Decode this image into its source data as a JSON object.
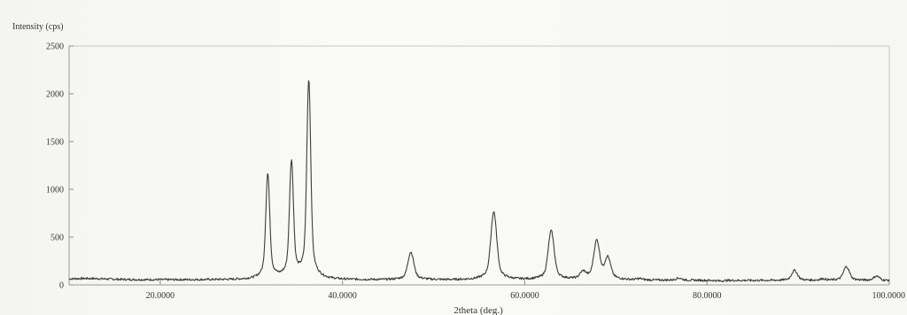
{
  "chart_data": {
    "type": "line",
    "title": "",
    "xlabel": "2theta (deg.)",
    "ylabel": "Intensity (cps)",
    "xlim": [
      10,
      100
    ],
    "ylim": [
      0,
      2500
    ],
    "x_ticks": [
      20,
      40,
      60,
      80,
      100
    ],
    "x_tick_labels": [
      "20.0000",
      "40.0000",
      "60.0000",
      "80.0000",
      "100.0000"
    ],
    "y_ticks": [
      0,
      500,
      1000,
      1500,
      2000,
      2500
    ],
    "y_tick_labels": [
      "0",
      "500",
      "1000",
      "1500",
      "2000",
      "2500"
    ],
    "grid": false,
    "series": [
      {
        "color": "#3c3c3c",
        "peaks": [
          {
            "x": 31.8,
            "y": 1150
          },
          {
            "x": 34.4,
            "y": 1270
          },
          {
            "x": 36.3,
            "y": 2130
          },
          {
            "x": 47.5,
            "y": 340
          },
          {
            "x": 56.6,
            "y": 760
          },
          {
            "x": 62.9,
            "y": 560
          },
          {
            "x": 66.4,
            "y": 120
          },
          {
            "x": 67.9,
            "y": 450
          },
          {
            "x": 69.1,
            "y": 270
          },
          {
            "x": 72.6,
            "y": 60
          },
          {
            "x": 76.9,
            "y": 70
          },
          {
            "x": 81.4,
            "y": 40
          },
          {
            "x": 89.6,
            "y": 150
          },
          {
            "x": 92.7,
            "y": 60
          },
          {
            "x": 95.3,
            "y": 190
          },
          {
            "x": 98.6,
            "y": 90
          }
        ]
      }
    ]
  }
}
